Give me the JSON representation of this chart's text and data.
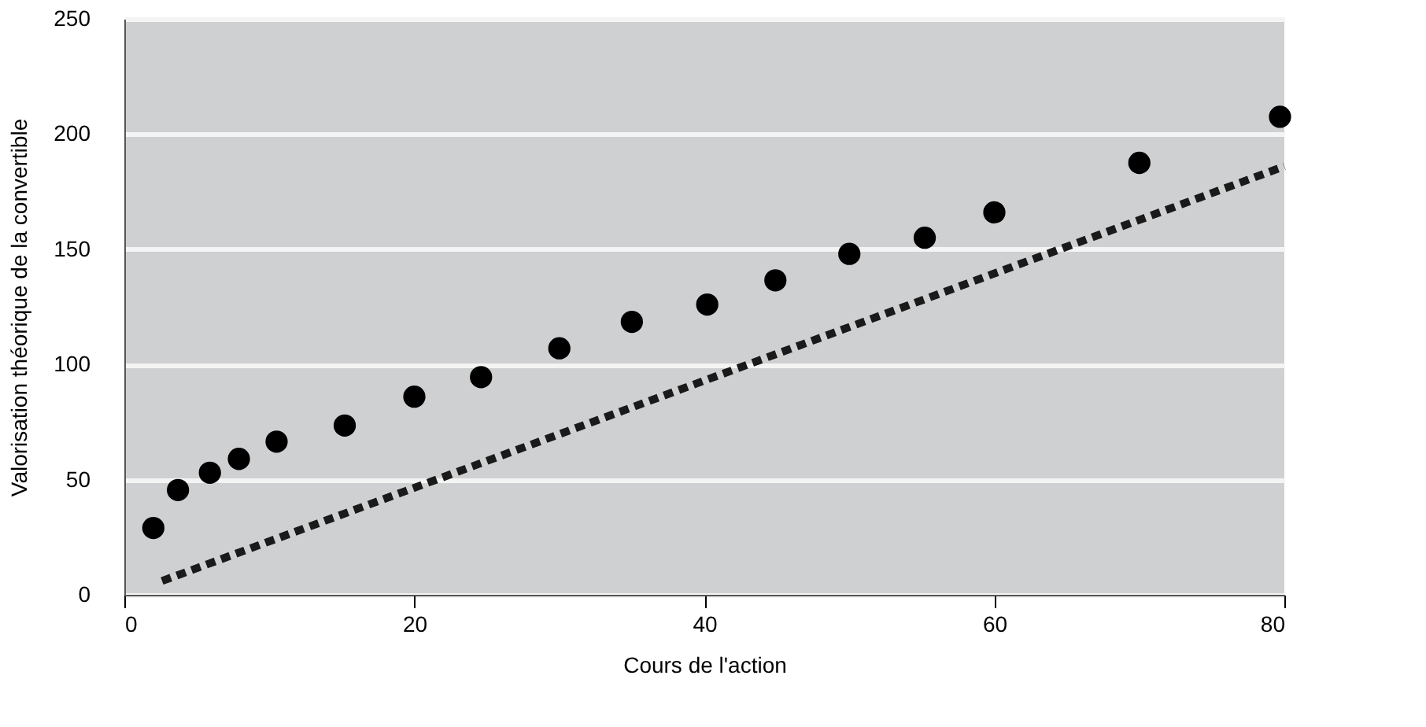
{
  "chart_data": {
    "type": "scatter",
    "xlabel": "Cours de l'action",
    "ylabel": "Valorisation théorique de la convertible",
    "x": [
      2,
      3.7,
      5.9,
      7.9,
      10.5,
      15.2,
      20,
      24.6,
      30,
      35,
      40.2,
      44.9,
      50,
      55.2,
      60,
      70,
      79.7
    ],
    "series": [
      {
        "color": "#000000",
        "marker": "circle",
        "values": [
          29,
          45.5,
          53,
          59,
          66.5,
          73.5,
          86,
          94.5,
          107,
          118.5,
          126,
          136.5,
          148,
          155,
          166,
          187.5,
          207.5
        ]
      },
      {
        "type": "line",
        "color": "#1a1a1a",
        "line_style": "dashed",
        "x": [
          2.6,
          80
        ],
        "values": [
          6,
          186
        ]
      }
    ],
    "xlim": [
      0,
      80
    ],
    "ylim": [
      0,
      250
    ],
    "xticks": [
      0,
      20,
      40,
      60,
      80
    ],
    "yticks": [
      0,
      50,
      100,
      150,
      200,
      250
    ],
    "grid": "y"
  }
}
